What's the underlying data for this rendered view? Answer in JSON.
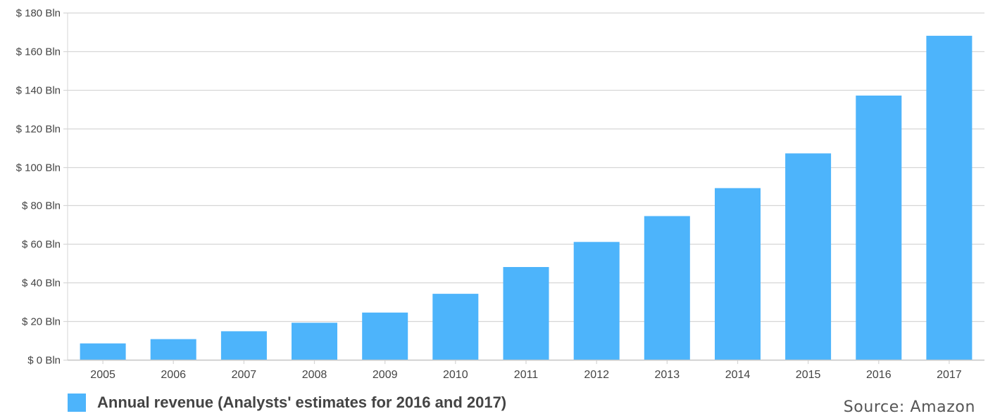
{
  "chart_data": {
    "type": "bar",
    "categories": [
      "2005",
      "2006",
      "2007",
      "2008",
      "2009",
      "2010",
      "2011",
      "2012",
      "2013",
      "2014",
      "2015",
      "2016",
      "2017"
    ],
    "values": [
      8.5,
      10.7,
      14.8,
      19.2,
      24.5,
      34.2,
      48.1,
      61.1,
      74.5,
      89.0,
      107.0,
      137.0,
      168.0
    ],
    "series": [
      {
        "name": "Annual revenue (Analysts' estimates for 2016 and 2017)",
        "values": [
          8.5,
          10.7,
          14.8,
          19.2,
          24.5,
          34.2,
          48.1,
          61.1,
          74.5,
          89.0,
          107.0,
          137.0,
          168.0
        ],
        "color": "#4db4fb"
      }
    ],
    "y_ticks": [
      0,
      20,
      40,
      60,
      80,
      100,
      120,
      140,
      160,
      180
    ],
    "y_tick_labels": [
      "$ 0 Bln",
      "$ 20 Bln",
      "$ 40 Bln",
      "$ 60 Bln",
      "$ 80 Bln",
      "$ 100 Bln",
      "$ 120 Bln",
      "$ 140 Bln",
      "$ 160 Bln",
      "$ 180 Bln"
    ],
    "ylim": [
      0,
      180
    ],
    "title": "",
    "xlabel": "",
    "ylabel": "",
    "grid": true,
    "legend_position": "bottom-left",
    "source": "Source: Amazon"
  },
  "legend": {
    "label": "Annual revenue (Analysts' estimates for 2016 and 2017)",
    "color": "#4db4fb"
  },
  "footer": {
    "source": "Source: Amazon"
  },
  "colors": {
    "bar": "#4db4fb",
    "grid": "#d6d6d6",
    "axis_text": "#444444"
  }
}
